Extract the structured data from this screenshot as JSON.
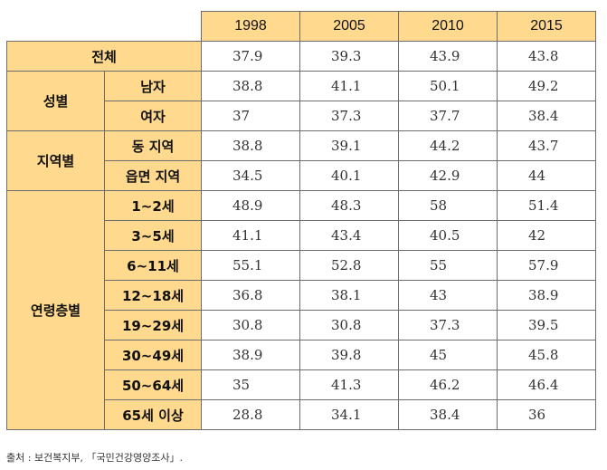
{
  "years": [
    "1998",
    "2005",
    "2010",
    "2015"
  ],
  "total": {
    "label": "전체",
    "values": [
      "37.9",
      "39.3",
      "43.9",
      "43.8"
    ]
  },
  "groups": [
    {
      "label": "성별",
      "rows": [
        {
          "label": "남자",
          "values": [
            "38.8",
            "41.1",
            "50.1",
            "49.2"
          ]
        },
        {
          "label": "여자",
          "values": [
            "37",
            "37.3",
            "37.7",
            "38.4"
          ]
        }
      ]
    },
    {
      "label": "지역별",
      "rows": [
        {
          "label": "동 지역",
          "values": [
            "38.8",
            "39.1",
            "44.2",
            "43.7"
          ]
        },
        {
          "label": "읍면 지역",
          "values": [
            "34.5",
            "40.1",
            "42.9",
            "44"
          ]
        }
      ]
    },
    {
      "label": "연령층별",
      "rows": [
        {
          "label": "1~2세",
          "values": [
            "48.9",
            "48.3",
            "58",
            "51.4"
          ]
        },
        {
          "label": "3~5세",
          "values": [
            "41.1",
            "43.4",
            "40.5",
            "42"
          ]
        },
        {
          "label": "6~11세",
          "values": [
            "55.1",
            "52.8",
            "55",
            "57.9"
          ]
        },
        {
          "label": "12~18세",
          "values": [
            "36.8",
            "38.1",
            "43",
            "38.9"
          ]
        },
        {
          "label": "19~29세",
          "values": [
            "30.8",
            "30.8",
            "37.3",
            "39.5"
          ]
        },
        {
          "label": "30~49세",
          "values": [
            "38.9",
            "39.8",
            "45",
            "45.8"
          ]
        },
        {
          "label": "50~64세",
          "values": [
            "35",
            "41.3",
            "46.2",
            "46.4"
          ]
        },
        {
          "label": "65세 이상",
          "values": [
            "28.8",
            "34.1",
            "38.4",
            "36"
          ]
        }
      ]
    }
  ],
  "source": "출처 : 보건복지부, 「국민건강영양조사」.",
  "colors": {
    "header_bg": "#ffd98e",
    "border": "#6d6d6d"
  }
}
